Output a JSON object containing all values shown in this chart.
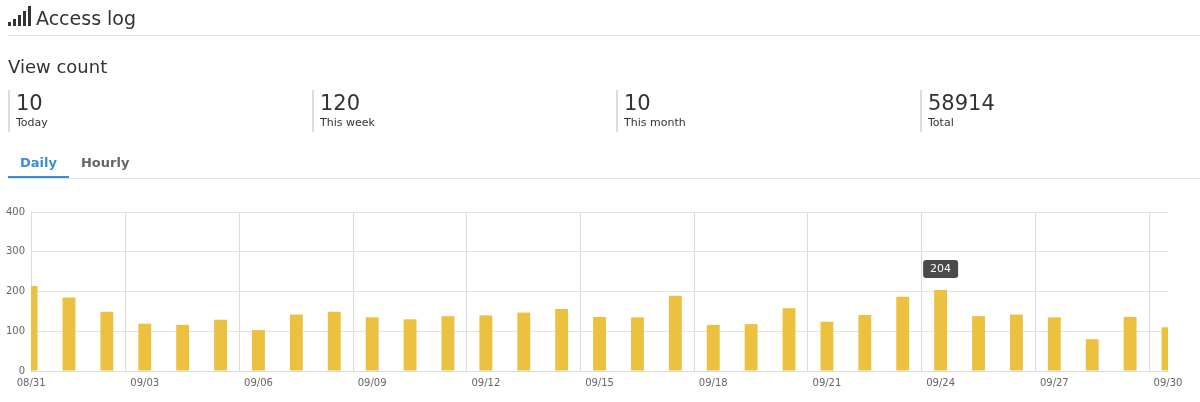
{
  "chart_data": {
    "type": "bar",
    "title": "Access log",
    "subtitle": "View count",
    "annotations": [
      "10",
      "Today",
      "120",
      "This week",
      "10",
      "This month",
      "58914",
      "Total",
      "Daily",
      "Hourly"
    ],
    "categories": [
      "08/31",
      null,
      null,
      "09/03",
      null,
      null,
      "09/06",
      null,
      null,
      "09/09",
      null,
      null,
      "09/12",
      null,
      null,
      "09/15",
      null,
      null,
      "09/18",
      null,
      null,
      "09/21",
      null,
      null,
      "09/24",
      null,
      null,
      "09/27",
      null,
      null,
      "09/30"
    ],
    "values": [
      214,
      185,
      149,
      119,
      116,
      129,
      103,
      142,
      149,
      135,
      130,
      138,
      140,
      147,
      156,
      136,
      135,
      189,
      116,
      118,
      158,
      124,
      141,
      187,
      204,
      138,
      142,
      135,
      80,
      136,
      110
    ],
    "value_labels": [
      null,
      null,
      null,
      null,
      null,
      null,
      null,
      null,
      null,
      null,
      null,
      null,
      null,
      null,
      null,
      null,
      null,
      null,
      null,
      null,
      null,
      null,
      null,
      null,
      "204",
      null,
      null,
      null,
      null,
      null,
      null
    ],
    "color": "#ecc13f",
    "ylim": [
      0,
      400
    ],
    "yticks": [
      0,
      100,
      200,
      300,
      400
    ],
    "grid": true
  }
}
